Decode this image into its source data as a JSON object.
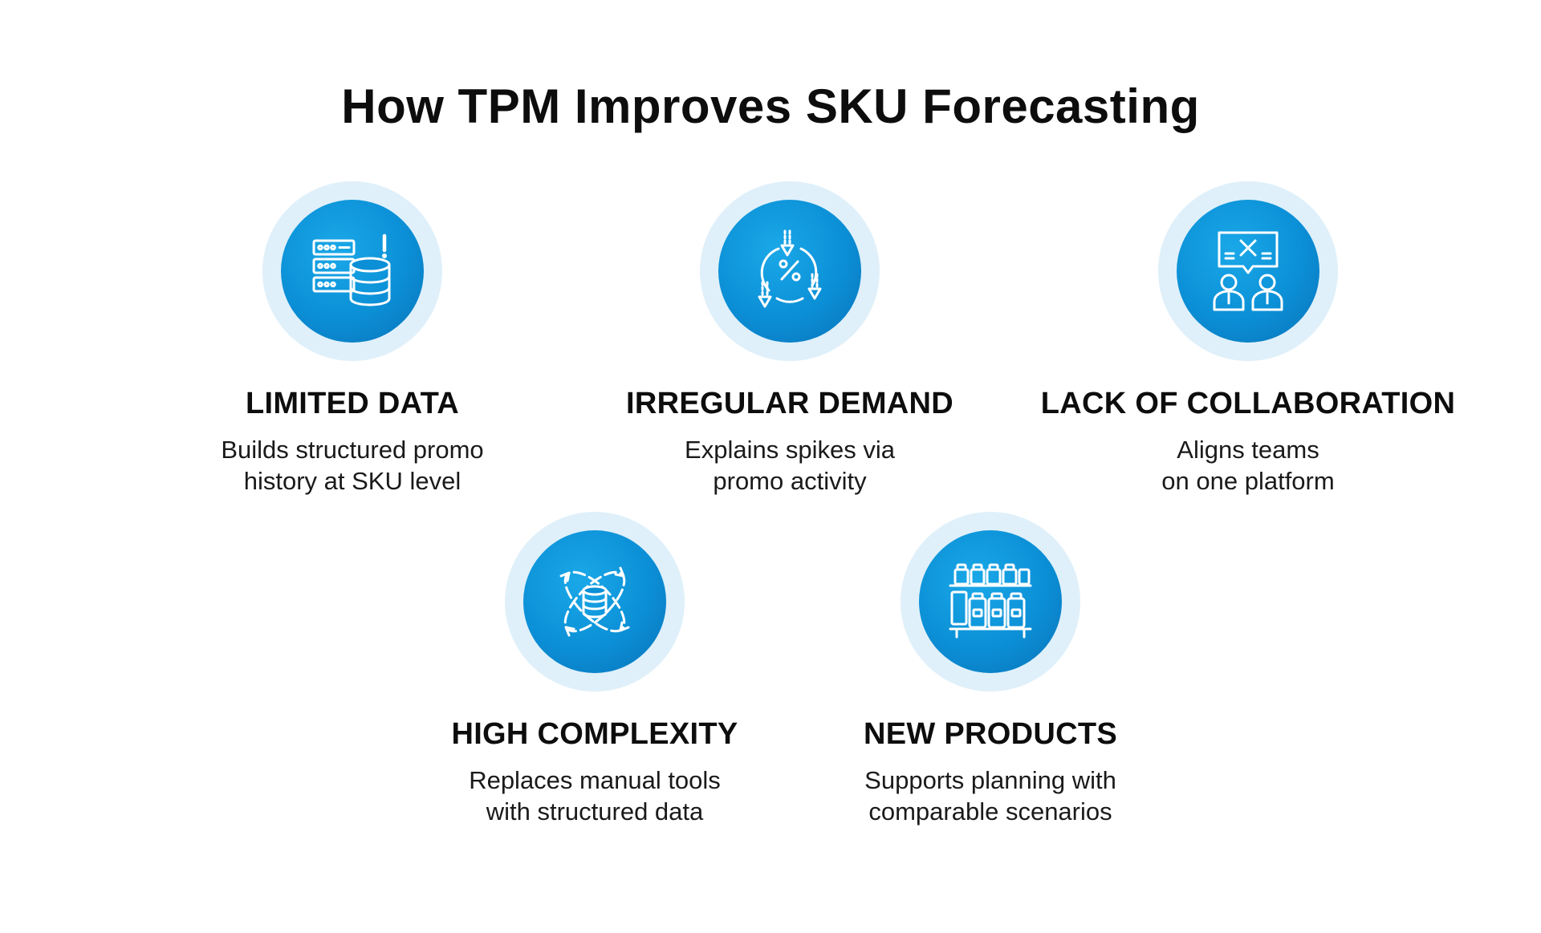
{
  "title": "How TPM Improves SKU Forecasting",
  "colors": {
    "icon_disc": "#0b8fd6",
    "icon_halo": "#dff0fa",
    "text": "#0d0d0d"
  },
  "items": [
    {
      "icon": "database-alert-icon",
      "title": "LIMITED DATA",
      "desc_line1": "Builds structured promo",
      "desc_line2": "history at SKU level"
    },
    {
      "icon": "percent-cycle-icon",
      "title": "IRREGULAR DEMAND",
      "desc_line1": "Explains spikes via",
      "desc_line2": "promo activity"
    },
    {
      "icon": "team-chat-icon",
      "title": "LACK OF COLLABORATION",
      "desc_line1": "Aligns teams",
      "desc_line2": "on one platform"
    },
    {
      "icon": "database-orbit-icon",
      "title": "HIGH COMPLEXITY",
      "desc_line1": "Replaces manual tools",
      "desc_line2": "with structured data"
    },
    {
      "icon": "store-shelf-icon",
      "title": "NEW PRODUCTS",
      "desc_line1": "Supports planning with",
      "desc_line2": "comparable scenarios"
    }
  ]
}
